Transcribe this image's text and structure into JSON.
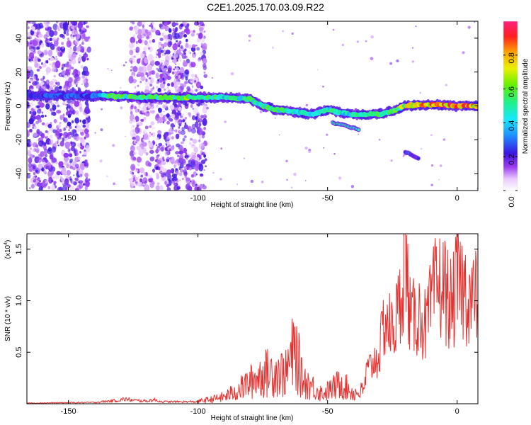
{
  "title": "C2E1.2025.170.03.09.R22",
  "chart_data": [
    {
      "type": "heatmap",
      "xlabel": "Height of straight line (km)",
      "ylabel": "Frequency (Hz)",
      "xlim": [
        -166,
        8
      ],
      "ylim": [
        -50,
        50
      ],
      "xticks": [
        -150,
        -100,
        -50,
        0
      ],
      "xtick_labels": [
        "-150",
        "-100",
        "-50",
        "0"
      ],
      "yticks": [
        40,
        20,
        0,
        -20,
        -40
      ],
      "ytick_labels": [
        "40",
        "20",
        "0",
        "-20",
        "-40"
      ],
      "colorbar": {
        "label": "Normalized spectral amplitude",
        "range": [
          0,
          1
        ],
        "ticks": [
          0.0,
          0.2,
          0.4,
          0.6,
          0.8
        ],
        "tick_labels": [
          "0.0",
          "0.2",
          "0.4",
          "0.6",
          "0.8"
        ]
      },
      "ridge": {
        "x": [
          -166,
          -140,
          -136,
          -120,
          -100,
          -90,
          -80,
          -75,
          -70,
          -65,
          -60,
          -55,
          -50,
          -45,
          -40,
          -36,
          -30,
          -25,
          -20,
          -10,
          0,
          8
        ],
        "y": [
          6,
          6,
          6,
          5,
          5,
          5,
          4,
          0,
          -2,
          -3,
          -4,
          -5,
          -2,
          -4,
          -5,
          -5,
          -5,
          -3,
          0,
          1,
          0,
          0
        ],
        "amplitude": [
          0.25,
          0.3,
          0.55,
          0.55,
          0.6,
          0.5,
          0.5,
          0.55,
          0.55,
          0.5,
          0.5,
          0.5,
          0.5,
          0.5,
          0.5,
          0.5,
          0.55,
          0.6,
          0.7,
          0.85,
          0.9,
          0.8
        ]
      },
      "branches": [
        {
          "x": [
            -48,
            -44,
            -40,
            -38
          ],
          "y": [
            -10,
            -11,
            -13,
            -14
          ],
          "amplitude": 0.45
        },
        {
          "x": [
            -20,
            -15
          ],
          "y": [
            -27,
            -31
          ],
          "amplitude": 0.25
        }
      ],
      "noise_bands": [
        {
          "x_range": [
            -166,
            -142
          ],
          "amplitude": 0.2
        },
        {
          "x_range": [
            -126,
            -117
          ],
          "amplitude": 0.15
        },
        {
          "x_range": [
            -116,
            -97
          ],
          "amplitude": 0.2
        }
      ]
    },
    {
      "type": "line",
      "xlabel": "Height of straight line (km)",
      "ylabel": "SNR (10 * v/v)",
      "y_scale_note": "(x10",
      "y_scale_exp": "4",
      "xlim": [
        -166,
        8
      ],
      "ylim": [
        0,
        1.65
      ],
      "xticks": [
        -150,
        -100,
        -50,
        0
      ],
      "xtick_labels": [
        "-150",
        "-100",
        "-50",
        "0"
      ],
      "yticks": [
        0.5,
        1.0,
        1.5
      ],
      "ytick_labels": [
        "0.5",
        "1.0",
        "1.5"
      ],
      "color": "#e8312f",
      "series": [
        {
          "x": [
            -166,
            -140,
            -131,
            -128,
            -125,
            -120,
            -117,
            -114,
            -110,
            -100,
            -95,
            -90,
            -85,
            -80,
            -75,
            -70,
            -66,
            -64,
            -62,
            -60,
            -55,
            -52,
            -50,
            -47,
            -45,
            -43,
            -40,
            -36,
            -35,
            -30,
            -28,
            -25,
            -22,
            -21,
            -20,
            -18,
            -15,
            -12,
            -10,
            -8,
            -5,
            -2,
            0,
            3,
            6,
            8
          ],
          "y": [
            0.01,
            0.02,
            0.05,
            0.07,
            0.05,
            0.04,
            0.06,
            0.03,
            0.03,
            0.03,
            0.05,
            0.08,
            0.15,
            0.25,
            0.35,
            0.38,
            0.35,
            0.55,
            0.6,
            0.3,
            0.18,
            0.12,
            0.15,
            0.2,
            0.25,
            0.2,
            0.12,
            0.15,
            0.35,
            0.55,
            0.95,
            0.8,
            1.1,
            1.5,
            1.65,
            0.9,
            1.0,
            0.85,
            1.1,
            1.3,
            1.3,
            1.05,
            1.35,
            1.25,
            1.15,
            1.2
          ]
        }
      ]
    }
  ]
}
